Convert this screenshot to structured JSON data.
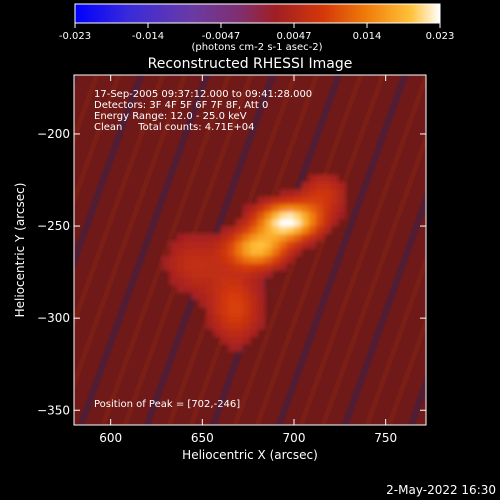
{
  "colors": {
    "background": "#000000",
    "foreground": "#ffffff",
    "colormap": [
      "#0000ff",
      "#3a2bd9",
      "#6a3aa5",
      "#7f2f6f",
      "#a01e24",
      "#d4380a",
      "#f07d0a",
      "#ffc23a",
      "#ffffff"
    ]
  },
  "colorbar": {
    "ticks": [
      "-0.023",
      "-0.014",
      "-0.0047",
      "0.0047",
      "0.014",
      "0.023"
    ],
    "units_label": "(photons cm-2 s-1 asec-2)",
    "range": [
      -0.023,
      0.023
    ]
  },
  "chart_data": {
    "type": "heatmap",
    "title": "Reconstructed RHESSI Image",
    "xlabel": "Heliocentric X (arcsec)",
    "ylabel": "Heliocentric Y (arcsec)",
    "xlim": [
      580,
      772
    ],
    "ylim": [
      -358,
      -168
    ],
    "xticks": [
      600,
      650,
      700,
      750
    ],
    "yticks": [
      -200,
      -250,
      -300,
      -350
    ],
    "annotations": [
      "17-Sep-2005 09:37:12.000 to 09:41:28.000",
      "Detectors: 3F 4F 5F 6F 7F 8F, Att 0",
      "Energy Range: 12.0 - 25.0 keV",
      "Clean     Total counts: 4.71E+04"
    ],
    "peak_label": "Position of Peak = [702,-246]",
    "peak": [
      702,
      -246
    ],
    "sources": [
      {
        "x": 697,
        "y": -247,
        "sigma_x": 12,
        "sigma_y": 7,
        "peak": 0.023
      },
      {
        "x": 680,
        "y": -262,
        "sigma_x": 11,
        "sigma_y": 7,
        "peak": 0.018
      },
      {
        "x": 668,
        "y": -294,
        "sigma_x": 10,
        "sigma_y": 14,
        "peak": 0.009
      },
      {
        "x": 716,
        "y": -232,
        "sigma_x": 9,
        "sigma_y": 8,
        "peak": 0.007
      },
      {
        "x": 645,
        "y": -270,
        "sigma_x": 12,
        "sigma_y": 12,
        "peak": 0.006
      }
    ]
  },
  "footer": {
    "date": "2-May-2022 16:30"
  }
}
